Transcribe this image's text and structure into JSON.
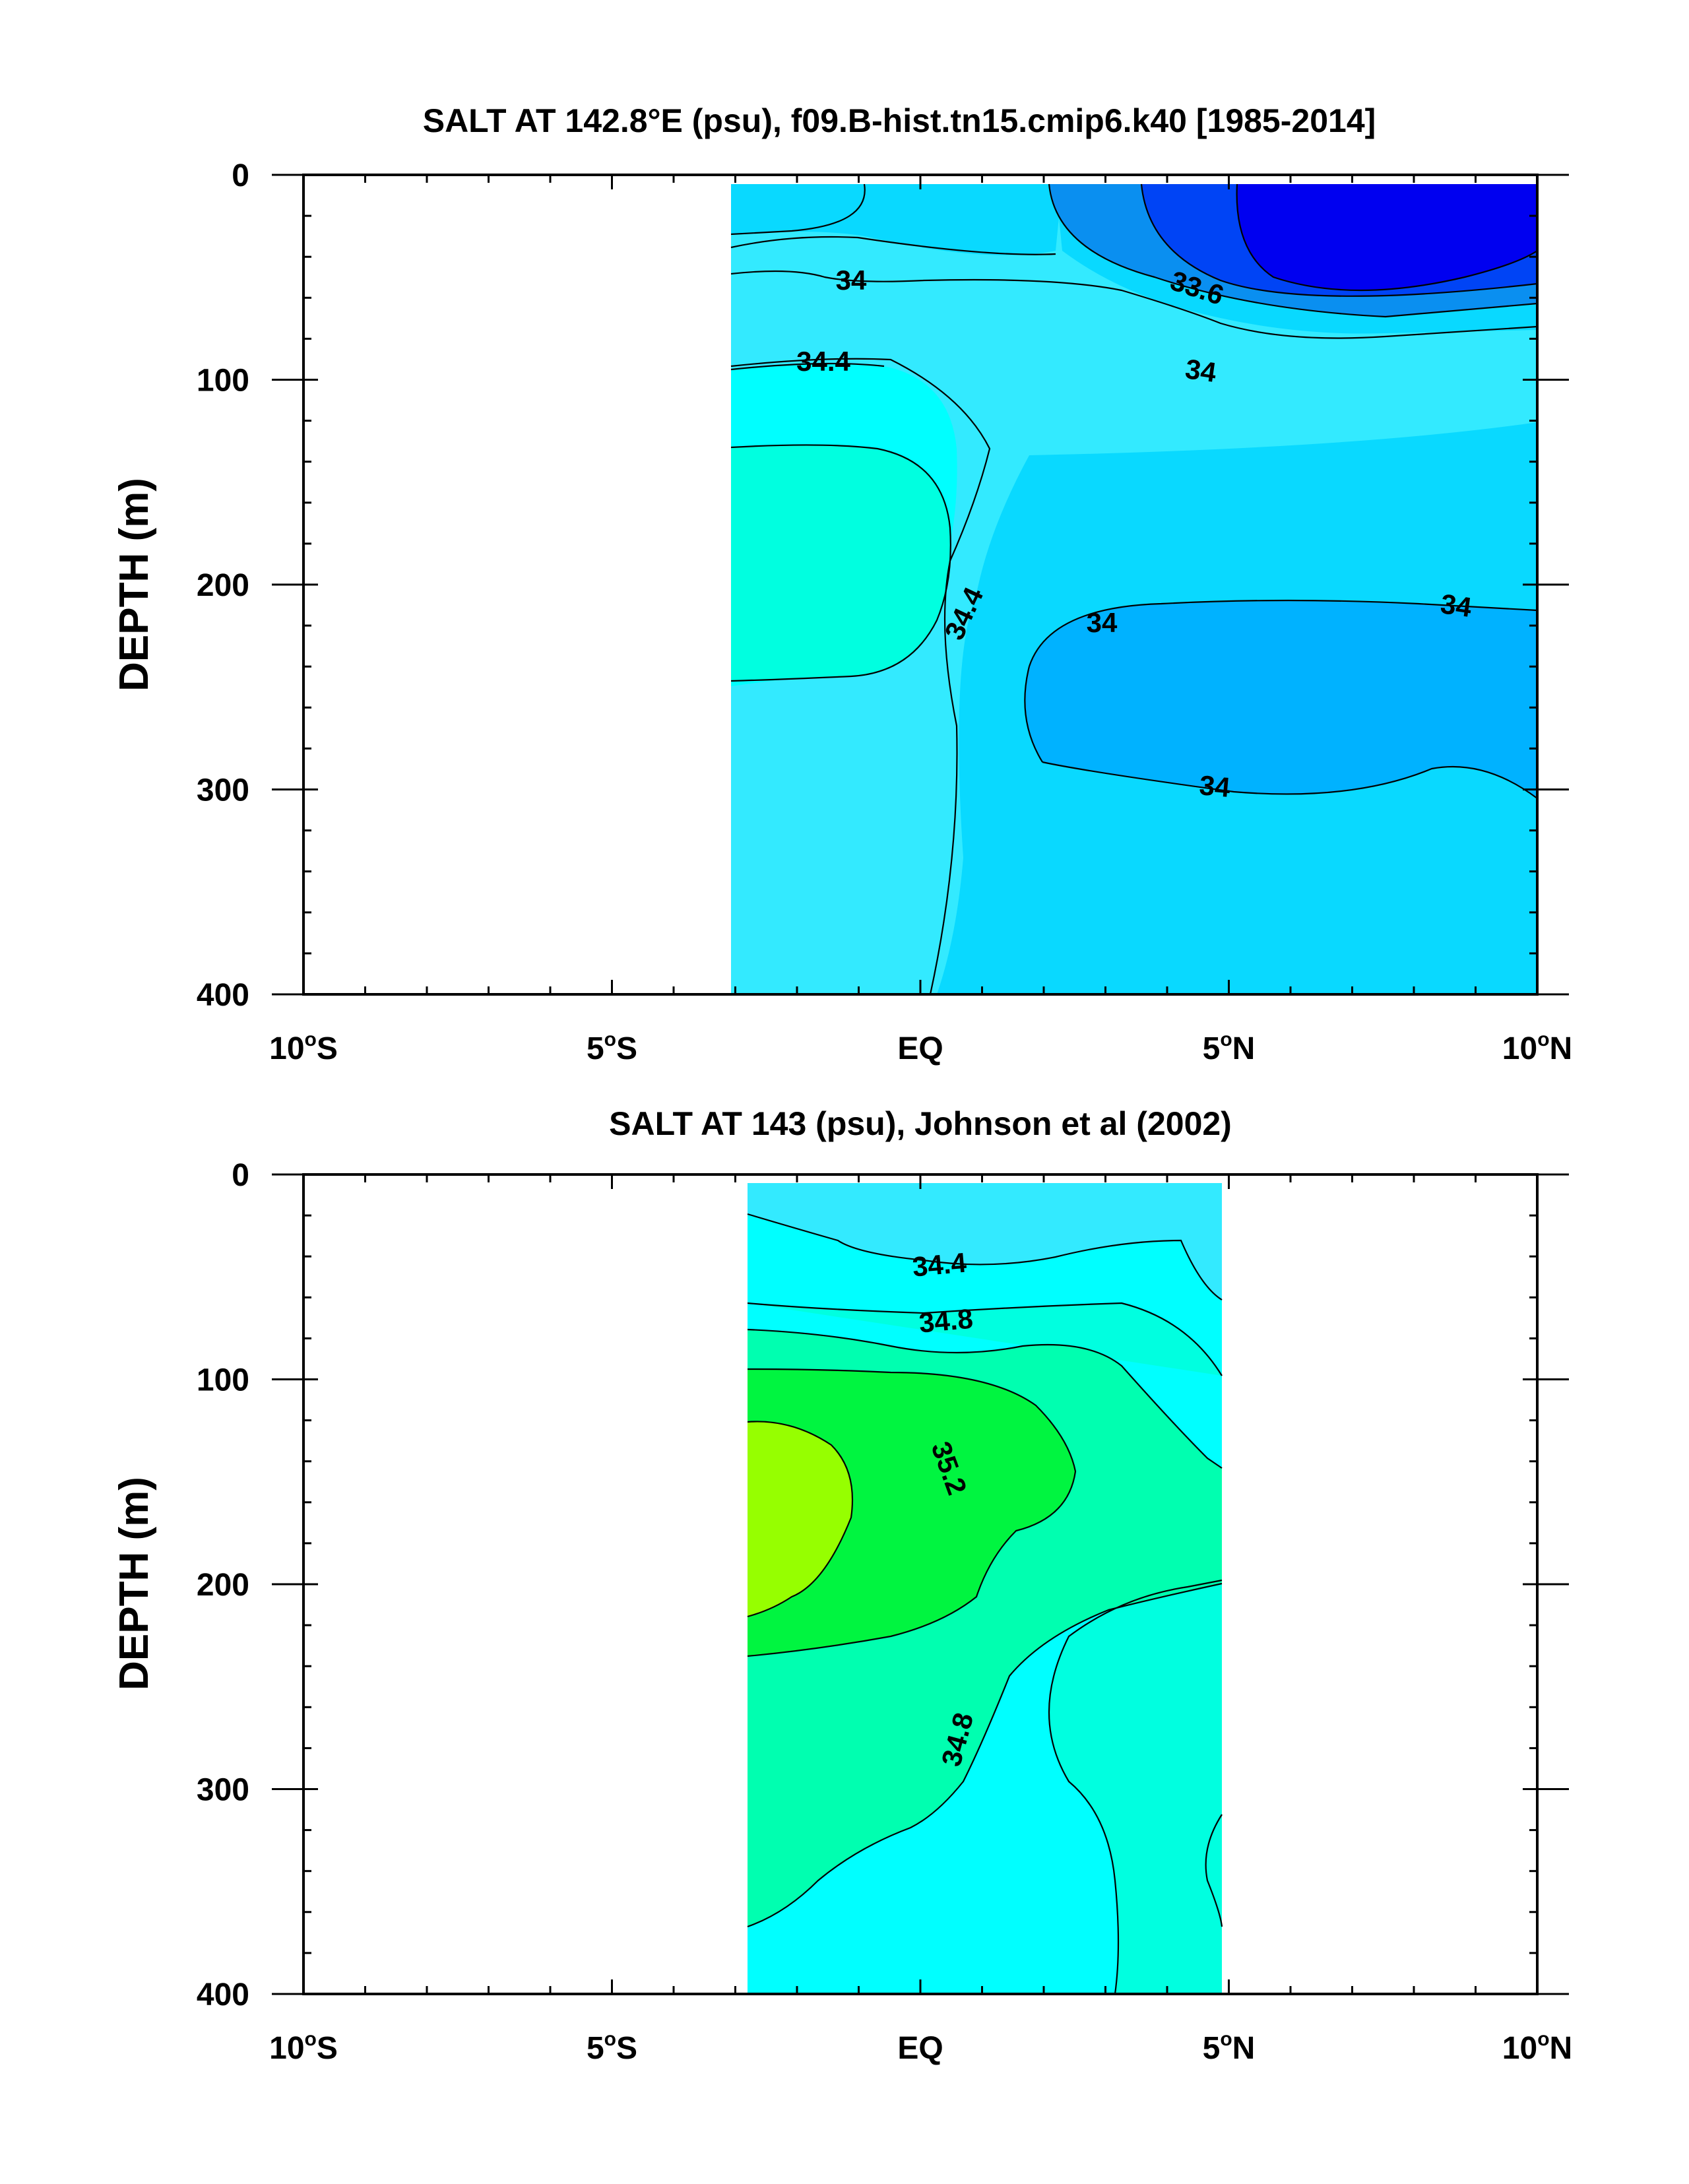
{
  "chart_data": [
    {
      "type": "heatmap",
      "title": "SALT AT 142.8°E (psu), f09.B-hist.tn15.cmip6.k40 [1985-2014]",
      "xlabel": "",
      "ylabel": "DEPTH (m)",
      "xlim": [
        -10,
        10
      ],
      "ylim": [
        400,
        0
      ],
      "x_ticks": [
        {
          "value": -10,
          "label": "10°S"
        },
        {
          "value": -5,
          "label": "5°S"
        },
        {
          "value": 0,
          "label": "EQ"
        },
        {
          "value": 5,
          "label": "5°N"
        },
        {
          "value": 10,
          "label": "10°N"
        }
      ],
      "y_ticks": [
        0,
        100,
        200,
        300,
        400
      ],
      "data_extent": {
        "lat": [
          -3,
          10
        ],
        "depth": [
          5,
          400
        ]
      },
      "levels": [
        33.4,
        33.6,
        33.8,
        34.0,
        34.2,
        34.4,
        34.6,
        34.8,
        35.0,
        35.2,
        35.4
      ],
      "colors": {
        "lt_33.6": "#0000f0",
        "33.6-33.8": "#0044f5",
        "33.8-34.0": "#0a8ff0",
        "34.0-34.2": "#00b2ff",
        "34.2-34.4": "#09d9ff",
        "34.4-34.6": "#33eaff",
        "34.6-34.8": "#00ffff",
        "34.8-35.0": "#00ffe0",
        "35.0-35.2": "#00ffb0",
        "35.2-35.4": "#00f540",
        "gt_35.4": "#96ff00"
      },
      "contour_labels": [
        {
          "text": "34",
          "lat": -0.7,
          "depth": 51
        },
        {
          "text": "33.6",
          "lat": 4.5,
          "depth": 57
        },
        {
          "text": "34",
          "lat": 4.5,
          "depth": 93
        },
        {
          "text": "34.4",
          "lat": -1.5,
          "depth": 90
        },
        {
          "text": "34.4",
          "lat": 0.9,
          "depth": 212
        },
        {
          "text": "34",
          "lat": 2.9,
          "depth": 224
        },
        {
          "text": "34",
          "lat": 8.5,
          "depth": 212
        },
        {
          "text": "34",
          "lat": 4.9,
          "depth": 300
        }
      ]
    },
    {
      "type": "heatmap",
      "title": "SALT AT 143 (psu), Johnson et al (2002)",
      "xlabel": "",
      "ylabel": "DEPTH (m)",
      "xlim": [
        -10,
        10
      ],
      "ylim": [
        400,
        0
      ],
      "x_ticks": [
        {
          "value": -10,
          "label": "10°S"
        },
        {
          "value": -5,
          "label": "5°S"
        },
        {
          "value": 0,
          "label": "EQ"
        },
        {
          "value": 5,
          "label": "5°N"
        },
        {
          "value": 10,
          "label": "10°N"
        }
      ],
      "y_ticks": [
        0,
        100,
        200,
        300,
        400
      ],
      "data_extent": {
        "lat": [
          -2.8,
          5
        ],
        "depth": [
          5,
          400
        ]
      },
      "levels": [
        33.4,
        33.6,
        33.8,
        34.0,
        34.2,
        34.4,
        34.6,
        34.8,
        35.0,
        35.2,
        35.4
      ],
      "colors": {
        "lt_33.6": "#0000f0",
        "33.6-33.8": "#0044f5",
        "33.8-34.0": "#0a8ff0",
        "34.0-34.2": "#00b2ff",
        "34.2-34.4": "#09d9ff",
        "34.4-34.6": "#33eaff",
        "34.6-34.8": "#00ffff",
        "34.8-35.0": "#00ffe0",
        "35.0-35.2": "#00ffb0",
        "35.2-35.4": "#00f540",
        "gt_35.4": "#96ff00"
      },
      "contour_labels": [
        {
          "text": "34.4",
          "lat": 0.4,
          "depth": 47
        },
        {
          "text": "34.8",
          "lat": 0.6,
          "depth": 76
        },
        {
          "text": "35.2",
          "lat": 0.4,
          "depth": 140
        },
        {
          "text": "34.8",
          "lat": 0.8,
          "depth": 277
        }
      ]
    }
  ]
}
